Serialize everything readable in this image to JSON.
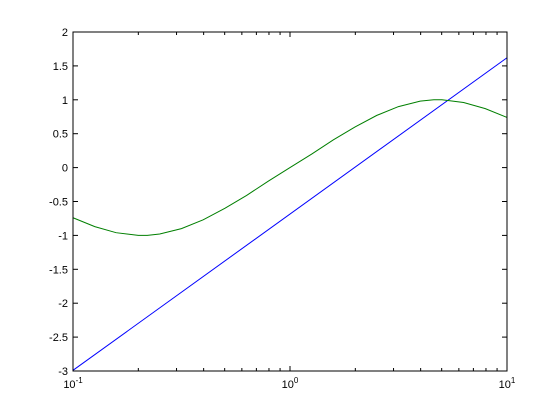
{
  "chart_data": {
    "type": "line",
    "xscale": "log",
    "xlim": [
      0.1,
      10
    ],
    "ylim": [
      -3,
      2
    ],
    "grid": false,
    "legend": "none",
    "title": "",
    "xlabel": "",
    "ylabel": "",
    "x_ticks": [
      {
        "value": 0.1,
        "base": "10",
        "exp": "-1"
      },
      {
        "value": 1,
        "base": "10",
        "exp": "0"
      },
      {
        "value": 10,
        "base": "10",
        "exp": "1"
      }
    ],
    "y_ticks": [
      "-3",
      "-2.5",
      "-2",
      "-1.5",
      "-1",
      "-0.5",
      "0",
      "0.5",
      "1",
      "1.5",
      "2"
    ],
    "series": [
      {
        "color": "#0000ff",
        "x": [
          0.1,
          10
        ],
        "y": [
          -2.99,
          1.62
        ]
      },
      {
        "color": "#007f00",
        "x": [
          0.1,
          0.126,
          0.158,
          0.2,
          0.22,
          0.251,
          0.316,
          0.398,
          0.501,
          0.631,
          0.794,
          1.0,
          1.259,
          1.585,
          1.995,
          2.512,
          3.162,
          3.981,
          4.6,
          5.012,
          6.31,
          7.943,
          10.0
        ],
        "y": [
          -0.74,
          -0.87,
          -0.96,
          -1.0,
          -1.0,
          -0.98,
          -0.9,
          -0.77,
          -0.6,
          -0.41,
          -0.2,
          0.0,
          0.2,
          0.41,
          0.6,
          0.77,
          0.9,
          0.98,
          1.0,
          1.0,
          0.96,
          0.87,
          0.74
        ]
      }
    ]
  }
}
